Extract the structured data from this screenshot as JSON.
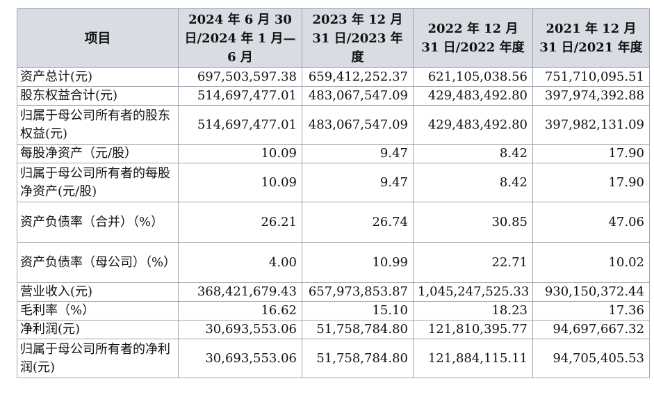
{
  "table": {
    "headers": [
      "项目",
      "2024 年 6 月 30 日/2024 年 1 月—6 月",
      "2023 年 12 月 31 日/2023 年度",
      "2022 年 12 月 31 日/2022 年度",
      "2021 年 12 月 31 日/2021 年度"
    ],
    "rows": [
      {
        "label": "资产总计(元)",
        "values": [
          "697,503,597.38",
          "659,412,252.37",
          "621,105,038.56",
          "751,710,095.51"
        ]
      },
      {
        "label": "股东权益合计(元)",
        "values": [
          "514,697,477.01",
          "483,067,547.09",
          "429,483,492.80",
          "397,974,392.88"
        ]
      },
      {
        "label": "归属于母公司所有者的股东权益(元)",
        "values": [
          "514,697,477.01",
          "483,067,547.09",
          "429,483,492.80",
          "397,982,131.09"
        ]
      },
      {
        "label": "每股净资产（元/股）",
        "values": [
          "10.09",
          "9.47",
          "8.42",
          "17.90"
        ]
      },
      {
        "label": "归属于母公司所有者的每股净资产(元/股)",
        "values": [
          "10.09",
          "9.47",
          "8.42",
          "17.90"
        ]
      },
      {
        "label": "资产负债率（合并）（%）",
        "values": [
          "26.21",
          "26.74",
          "30.85",
          "47.06"
        ]
      },
      {
        "label": "资产负债率（母公司）（%）",
        "values": [
          "4.00",
          "10.99",
          "22.71",
          "10.02"
        ]
      },
      {
        "label": "营业收入(元)",
        "values": [
          "368,421,679.43",
          "657,973,853.87",
          "1,045,247,525.33",
          "930,150,372.44"
        ]
      },
      {
        "label": "毛利率（%）",
        "values": [
          "16.62",
          "15.10",
          "18.23",
          "17.36"
        ]
      },
      {
        "label": "净利润(元)",
        "values": [
          "30,693,553.06",
          "51,758,784.80",
          "121,810,395.77",
          "94,697,667.32"
        ]
      },
      {
        "label": "归属于母公司所有者的净利润(元)",
        "values": [
          "30,693,553.06",
          "51,758,784.80",
          "121,884,115.11",
          "94,705,405.53"
        ]
      }
    ]
  }
}
